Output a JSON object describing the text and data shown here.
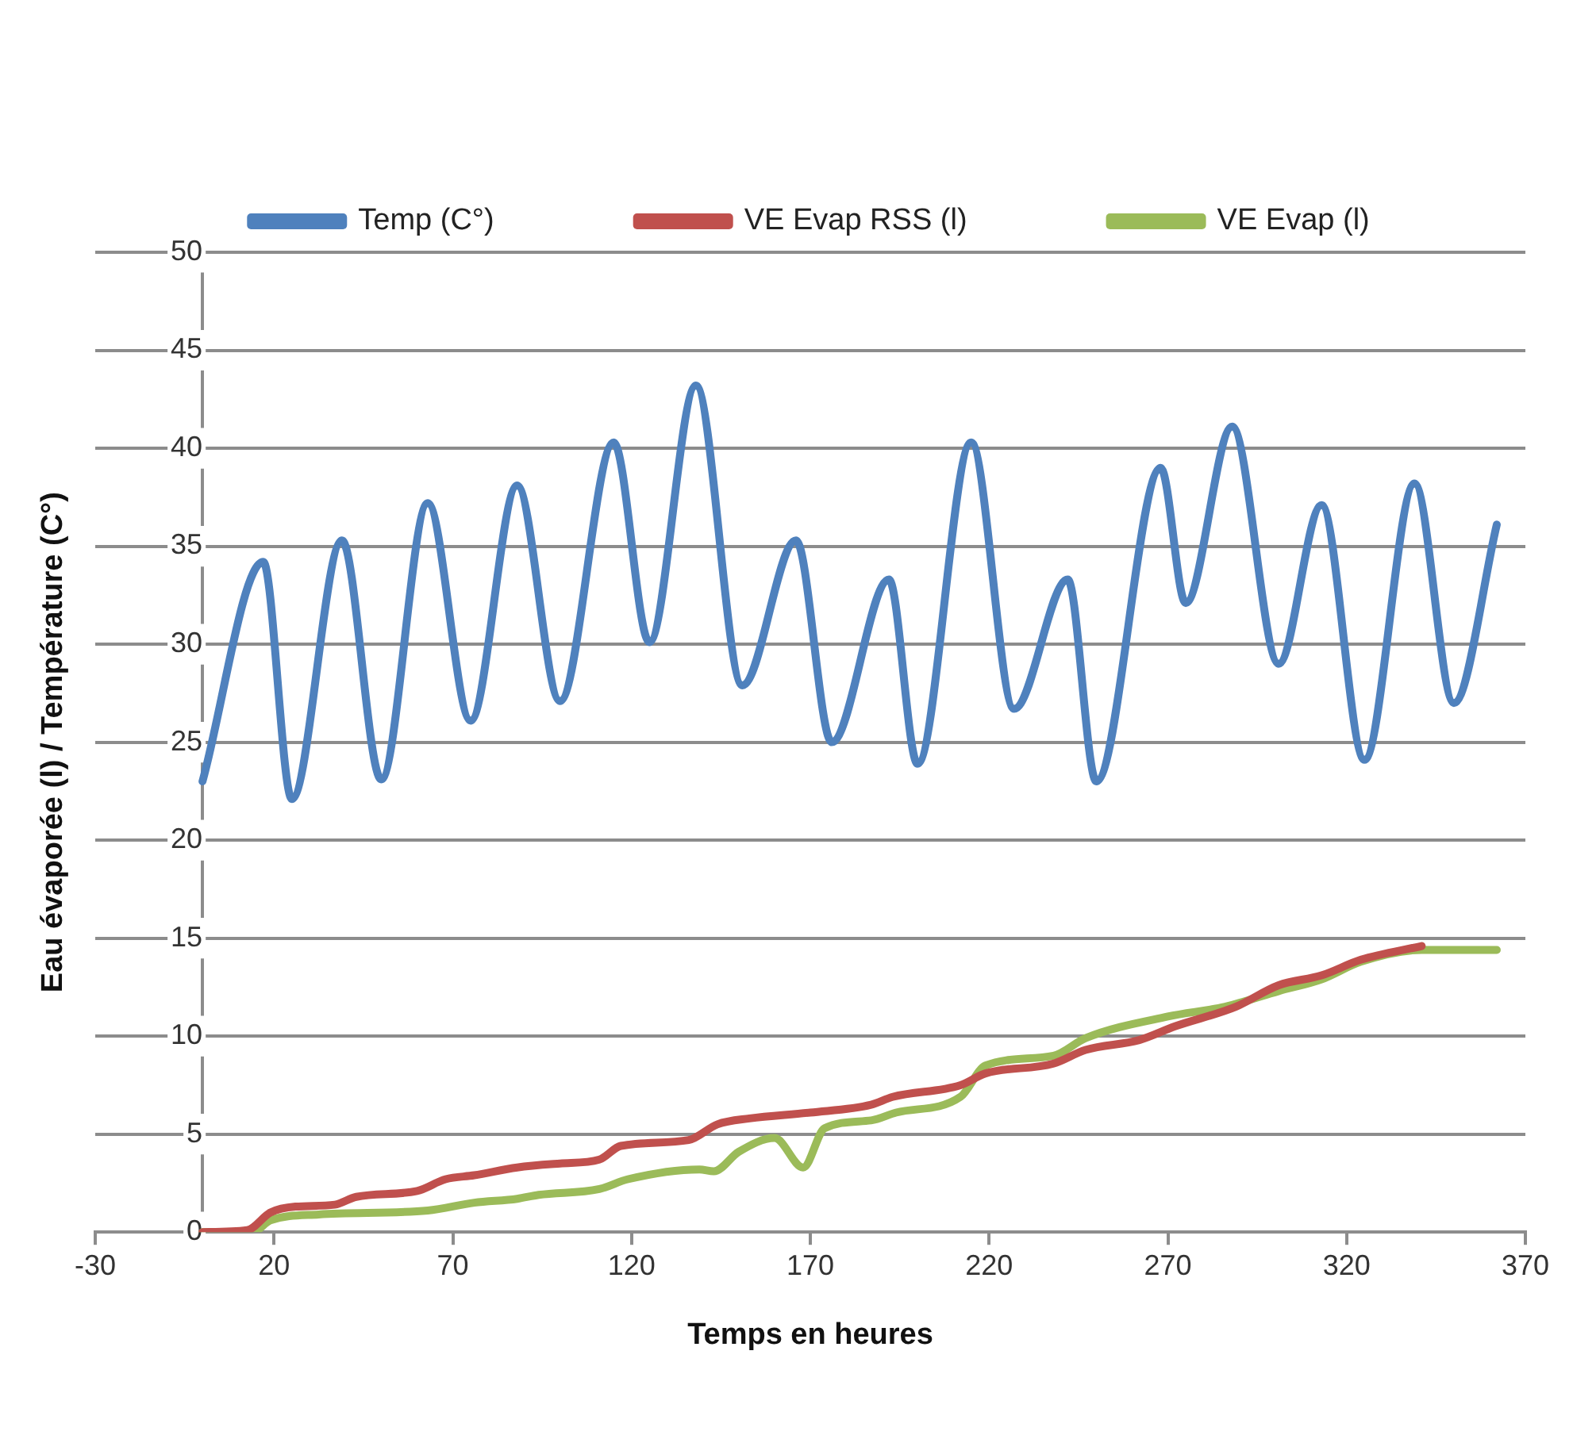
{
  "chart_data": {
    "type": "line",
    "xlabel": "Temps en heures",
    "ylabel": "Eau évaporée (l) / Température (C°)",
    "xlim": [
      -30,
      370
    ],
    "xticks": [
      -30,
      20,
      70,
      120,
      170,
      220,
      270,
      320,
      370
    ],
    "ylim": [
      0,
      50
    ],
    "yticks": [
      0,
      5,
      10,
      15,
      20,
      25,
      30,
      35,
      40,
      45,
      50
    ],
    "grid": "y",
    "legend": "top",
    "marker": "none",
    "line_style": "solid",
    "series": [
      {
        "name": "Temp (C°)",
        "color": "#4f81bd",
        "x": [
          0,
          17,
          25,
          39,
          50,
          63,
          75,
          88,
          100,
          115,
          125,
          138,
          151,
          166,
          176,
          192,
          200,
          215,
          227,
          242,
          250,
          268,
          275,
          288,
          301,
          313,
          325,
          339,
          350,
          362
        ],
        "values": [
          23.0,
          34.2,
          22.1,
          35.3,
          23.1,
          37.2,
          26.1,
          38.1,
          27.1,
          40.3,
          30.1,
          43.2,
          27.9,
          35.3,
          25.0,
          33.3,
          23.9,
          40.3,
          26.7,
          33.3,
          23.0,
          39.0,
          32.1,
          41.1,
          29.0,
          37.1,
          24.1,
          38.2,
          27.0,
          36.1
        ]
      },
      {
        "name": "VE Evap RSS (l)",
        "color": "#c0504d",
        "x": [
          0,
          12.5,
          19,
          26,
          37,
          43,
          60,
          68,
          76,
          88,
          100,
          111,
          117,
          136,
          144,
          153,
          170,
          187,
          193,
          212,
          219,
          238,
          247,
          262,
          272,
          289,
          301,
          313,
          324,
          341
        ],
        "values": [
          0,
          0.1,
          1.0,
          1.3,
          1.4,
          1.8,
          2.1,
          2.7,
          2.9,
          3.3,
          3.5,
          3.7,
          4.4,
          4.7,
          5.5,
          5.8,
          6.1,
          6.5,
          6.9,
          7.5,
          8.1,
          8.6,
          9.3,
          9.8,
          10.5,
          11.5,
          12.6,
          13.1,
          13.9,
          14.6
        ]
      },
      {
        "name": "VE Evap (l)",
        "color": "#9bbb59",
        "x": [
          0,
          14,
          19,
          32.5,
          63,
          76,
          88,
          94,
          111,
          119,
          139,
          143,
          150,
          160,
          168,
          174,
          187,
          194,
          212,
          219,
          238,
          247,
          270,
          286,
          301,
          313,
          324,
          341,
          362
        ],
        "values": [
          0,
          0,
          0.6,
          0.9,
          1.1,
          1.5,
          1.7,
          1.9,
          2.2,
          2.7,
          3.2,
          3.1,
          4.1,
          4.8,
          3.3,
          5.3,
          5.7,
          6.1,
          6.9,
          8.5,
          9.0,
          9.9,
          11.0,
          11.5,
          12.3,
          12.9,
          13.8,
          14.4,
          14.4
        ]
      }
    ]
  }
}
